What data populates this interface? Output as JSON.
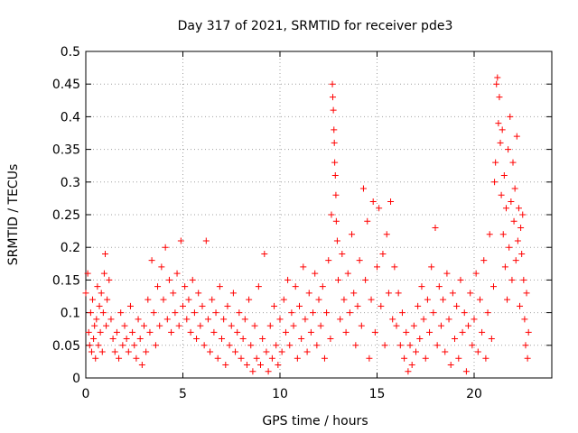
{
  "chart_data": {
    "type": "scatter",
    "title": "Day 317 of 2021, SRMTID for receiver pde3",
    "xlabel": "GPS time / hours",
    "ylabel": "SRMTID / TECUs",
    "xlim": [
      0,
      24
    ],
    "ylim": [
      0,
      0.5
    ],
    "grid": true,
    "x_ticks": [
      0,
      5,
      10,
      15,
      20
    ],
    "x_tick_labels": [
      "0",
      "5",
      "10",
      "15",
      "20"
    ],
    "y_ticks": [
      0,
      0.05,
      0.1,
      0.15,
      0.2,
      0.25,
      0.3,
      0.35,
      0.4,
      0.45,
      0.5
    ],
    "y_tick_labels": [
      "0",
      "0.05",
      "0.1",
      "0.15",
      "0.2",
      "0.25",
      "0.3",
      "0.35",
      "0.4",
      "0.45",
      "0.5"
    ],
    "series": [
      {
        "name": "SRMTID",
        "color": "#ff0000",
        "marker": "plus",
        "points": [
          [
            0.0,
            0.13
          ],
          [
            0.1,
            0.16
          ],
          [
            0.15,
            0.07
          ],
          [
            0.2,
            0.05
          ],
          [
            0.25,
            0.1
          ],
          [
            0.3,
            0.04
          ],
          [
            0.35,
            0.12
          ],
          [
            0.4,
            0.06
          ],
          [
            0.45,
            0.08
          ],
          [
            0.5,
            0.03
          ],
          [
            0.55,
            0.09
          ],
          [
            0.6,
            0.14
          ],
          [
            0.65,
            0.05
          ],
          [
            0.7,
            0.11
          ],
          [
            0.75,
            0.07
          ],
          [
            0.8,
            0.13
          ],
          [
            0.85,
            0.04
          ],
          [
            0.9,
            0.1
          ],
          [
            0.95,
            0.16
          ],
          [
            1.0,
            0.19
          ],
          [
            1.05,
            0.08
          ],
          [
            1.1,
            0.12
          ],
          [
            1.2,
            0.15
          ],
          [
            1.3,
            0.09
          ],
          [
            1.4,
            0.06
          ],
          [
            1.5,
            0.04
          ],
          [
            1.6,
            0.07
          ],
          [
            1.7,
            0.03
          ],
          [
            1.8,
            0.1
          ],
          [
            1.9,
            0.05
          ],
          [
            2.0,
            0.08
          ],
          [
            2.1,
            0.06
          ],
          [
            2.2,
            0.04
          ],
          [
            2.3,
            0.11
          ],
          [
            2.4,
            0.07
          ],
          [
            2.5,
            0.05
          ],
          [
            2.6,
            0.03
          ],
          [
            2.7,
            0.09
          ],
          [
            2.8,
            0.06
          ],
          [
            2.9,
            0.02
          ],
          [
            3.0,
            0.08
          ],
          [
            3.1,
            0.04
          ],
          [
            3.2,
            0.12
          ],
          [
            3.3,
            0.07
          ],
          [
            3.4,
            0.18
          ],
          [
            3.5,
            0.1
          ],
          [
            3.6,
            0.05
          ],
          [
            3.7,
            0.14
          ],
          [
            3.8,
            0.08
          ],
          [
            3.9,
            0.17
          ],
          [
            4.0,
            0.12
          ],
          [
            4.1,
            0.2
          ],
          [
            4.2,
            0.09
          ],
          [
            4.3,
            0.15
          ],
          [
            4.4,
            0.07
          ],
          [
            4.5,
            0.13
          ],
          [
            4.6,
            0.1
          ],
          [
            4.7,
            0.16
          ],
          [
            4.8,
            0.08
          ],
          [
            4.9,
            0.21
          ],
          [
            5.0,
            0.11
          ],
          [
            5.1,
            0.14
          ],
          [
            5.2,
            0.09
          ],
          [
            5.3,
            0.12
          ],
          [
            5.4,
            0.07
          ],
          [
            5.5,
            0.15
          ],
          [
            5.6,
            0.1
          ],
          [
            5.7,
            0.06
          ],
          [
            5.8,
            0.13
          ],
          [
            5.9,
            0.08
          ],
          [
            6.0,
            0.11
          ],
          [
            6.1,
            0.05
          ],
          [
            6.2,
            0.21
          ],
          [
            6.3,
            0.09
          ],
          [
            6.4,
            0.04
          ],
          [
            6.5,
            0.12
          ],
          [
            6.6,
            0.07
          ],
          [
            6.7,
            0.1
          ],
          [
            6.8,
            0.03
          ],
          [
            6.9,
            0.14
          ],
          [
            7.0,
            0.06
          ],
          [
            7.1,
            0.09
          ],
          [
            7.2,
            0.02
          ],
          [
            7.3,
            0.11
          ],
          [
            7.4,
            0.05
          ],
          [
            7.5,
            0.08
          ],
          [
            7.6,
            0.13
          ],
          [
            7.7,
            0.04
          ],
          [
            7.8,
            0.07
          ],
          [
            7.9,
            0.1
          ],
          [
            8.0,
            0.03
          ],
          [
            8.1,
            0.06
          ],
          [
            8.2,
            0.09
          ],
          [
            8.3,
            0.02
          ],
          [
            8.4,
            0.12
          ],
          [
            8.5,
            0.05
          ],
          [
            8.6,
            0.01
          ],
          [
            8.7,
            0.08
          ],
          [
            8.8,
            0.03
          ],
          [
            8.9,
            0.14
          ],
          [
            9.0,
            0.02
          ],
          [
            9.1,
            0.06
          ],
          [
            9.2,
            0.19
          ],
          [
            9.3,
            0.04
          ],
          [
            9.4,
            0.01
          ],
          [
            9.5,
            0.08
          ],
          [
            9.6,
            0.03
          ],
          [
            9.7,
            0.11
          ],
          [
            9.8,
            0.05
          ],
          [
            9.9,
            0.02
          ],
          [
            10.0,
            0.09
          ],
          [
            10.1,
            0.04
          ],
          [
            10.2,
            0.12
          ],
          [
            10.3,
            0.07
          ],
          [
            10.4,
            0.15
          ],
          [
            10.5,
            0.05
          ],
          [
            10.6,
            0.1
          ],
          [
            10.7,
            0.08
          ],
          [
            10.8,
            0.14
          ],
          [
            10.9,
            0.03
          ],
          [
            11.0,
            0.11
          ],
          [
            11.1,
            0.06
          ],
          [
            11.2,
            0.17
          ],
          [
            11.3,
            0.09
          ],
          [
            11.4,
            0.04
          ],
          [
            11.5,
            0.13
          ],
          [
            11.6,
            0.07
          ],
          [
            11.7,
            0.1
          ],
          [
            11.8,
            0.16
          ],
          [
            11.9,
            0.05
          ],
          [
            12.0,
            0.12
          ],
          [
            12.1,
            0.08
          ],
          [
            12.2,
            0.14
          ],
          [
            12.3,
            0.03
          ],
          [
            12.4,
            0.1
          ],
          [
            12.5,
            0.18
          ],
          [
            12.6,
            0.06
          ],
          [
            12.65,
            0.25
          ],
          [
            12.7,
            0.45
          ],
          [
            12.72,
            0.43
          ],
          [
            12.75,
            0.41
          ],
          [
            12.78,
            0.38
          ],
          [
            12.8,
            0.36
          ],
          [
            12.82,
            0.33
          ],
          [
            12.85,
            0.31
          ],
          [
            12.88,
            0.28
          ],
          [
            12.9,
            0.24
          ],
          [
            12.95,
            0.21
          ],
          [
            13.0,
            0.15
          ],
          [
            13.1,
            0.09
          ],
          [
            13.2,
            0.19
          ],
          [
            13.3,
            0.12
          ],
          [
            13.4,
            0.07
          ],
          [
            13.5,
            0.16
          ],
          [
            13.6,
            0.1
          ],
          [
            13.7,
            0.22
          ],
          [
            13.8,
            0.13
          ],
          [
            13.9,
            0.05
          ],
          [
            14.0,
            0.11
          ],
          [
            14.1,
            0.18
          ],
          [
            14.2,
            0.08
          ],
          [
            14.3,
            0.29
          ],
          [
            14.4,
            0.15
          ],
          [
            14.5,
            0.24
          ],
          [
            14.6,
            0.03
          ],
          [
            14.7,
            0.12
          ],
          [
            14.8,
            0.27
          ],
          [
            14.9,
            0.07
          ],
          [
            15.0,
            0.17
          ],
          [
            15.1,
            0.26
          ],
          [
            15.2,
            0.11
          ],
          [
            15.3,
            0.19
          ],
          [
            15.4,
            0.05
          ],
          [
            15.5,
            0.22
          ],
          [
            15.6,
            0.13
          ],
          [
            15.7,
            0.27
          ],
          [
            15.8,
            0.09
          ],
          [
            15.9,
            0.17
          ],
          [
            16.0,
            0.08
          ],
          [
            16.1,
            0.13
          ],
          [
            16.2,
            0.05
          ],
          [
            16.3,
            0.1
          ],
          [
            16.4,
            0.03
          ],
          [
            16.5,
            0.07
          ],
          [
            16.6,
            0.01
          ],
          [
            16.7,
            0.05
          ],
          [
            16.8,
            0.02
          ],
          [
            16.9,
            0.08
          ],
          [
            17.0,
            0.04
          ],
          [
            17.1,
            0.11
          ],
          [
            17.2,
            0.06
          ],
          [
            17.3,
            0.14
          ],
          [
            17.4,
            0.09
          ],
          [
            17.5,
            0.03
          ],
          [
            17.6,
            0.12
          ],
          [
            17.7,
            0.07
          ],
          [
            17.8,
            0.17
          ],
          [
            17.9,
            0.1
          ],
          [
            18.0,
            0.23
          ],
          [
            18.1,
            0.05
          ],
          [
            18.2,
            0.14
          ],
          [
            18.3,
            0.08
          ],
          [
            18.4,
            0.12
          ],
          [
            18.5,
            0.04
          ],
          [
            18.6,
            0.16
          ],
          [
            18.7,
            0.09
          ],
          [
            18.8,
            0.02
          ],
          [
            18.9,
            0.13
          ],
          [
            19.0,
            0.06
          ],
          [
            19.1,
            0.11
          ],
          [
            19.2,
            0.03
          ],
          [
            19.3,
            0.15
          ],
          [
            19.4,
            0.07
          ],
          [
            19.5,
            0.1
          ],
          [
            19.6,
            0.01
          ],
          [
            19.7,
            0.08
          ],
          [
            19.8,
            0.13
          ],
          [
            19.9,
            0.05
          ],
          [
            20.0,
            0.09
          ],
          [
            20.1,
            0.16
          ],
          [
            20.2,
            0.04
          ],
          [
            20.3,
            0.12
          ],
          [
            20.4,
            0.07
          ],
          [
            20.5,
            0.18
          ],
          [
            20.6,
            0.03
          ],
          [
            20.7,
            0.1
          ],
          [
            20.8,
            0.22
          ],
          [
            20.9,
            0.06
          ],
          [
            21.0,
            0.14
          ],
          [
            21.05,
            0.3
          ],
          [
            21.1,
            0.33
          ],
          [
            21.15,
            0.45
          ],
          [
            21.2,
            0.46
          ],
          [
            21.25,
            0.39
          ],
          [
            21.3,
            0.43
          ],
          [
            21.35,
            0.36
          ],
          [
            21.4,
            0.28
          ],
          [
            21.45,
            0.38
          ],
          [
            21.5,
            0.22
          ],
          [
            21.55,
            0.31
          ],
          [
            21.6,
            0.17
          ],
          [
            21.65,
            0.26
          ],
          [
            21.7,
            0.12
          ],
          [
            21.75,
            0.35
          ],
          [
            21.8,
            0.2
          ],
          [
            21.85,
            0.4
          ],
          [
            21.9,
            0.27
          ],
          [
            21.95,
            0.15
          ],
          [
            22.0,
            0.33
          ],
          [
            22.05,
            0.24
          ],
          [
            22.1,
            0.29
          ],
          [
            22.15,
            0.18
          ],
          [
            22.2,
            0.37
          ],
          [
            22.25,
            0.21
          ],
          [
            22.3,
            0.26
          ],
          [
            22.35,
            0.11
          ],
          [
            22.4,
            0.23
          ],
          [
            22.45,
            0.19
          ],
          [
            22.5,
            0.25
          ],
          [
            22.55,
            0.15
          ],
          [
            22.6,
            0.09
          ],
          [
            22.65,
            0.05
          ],
          [
            22.7,
            0.13
          ],
          [
            22.75,
            0.03
          ],
          [
            22.8,
            0.07
          ]
        ]
      }
    ]
  }
}
